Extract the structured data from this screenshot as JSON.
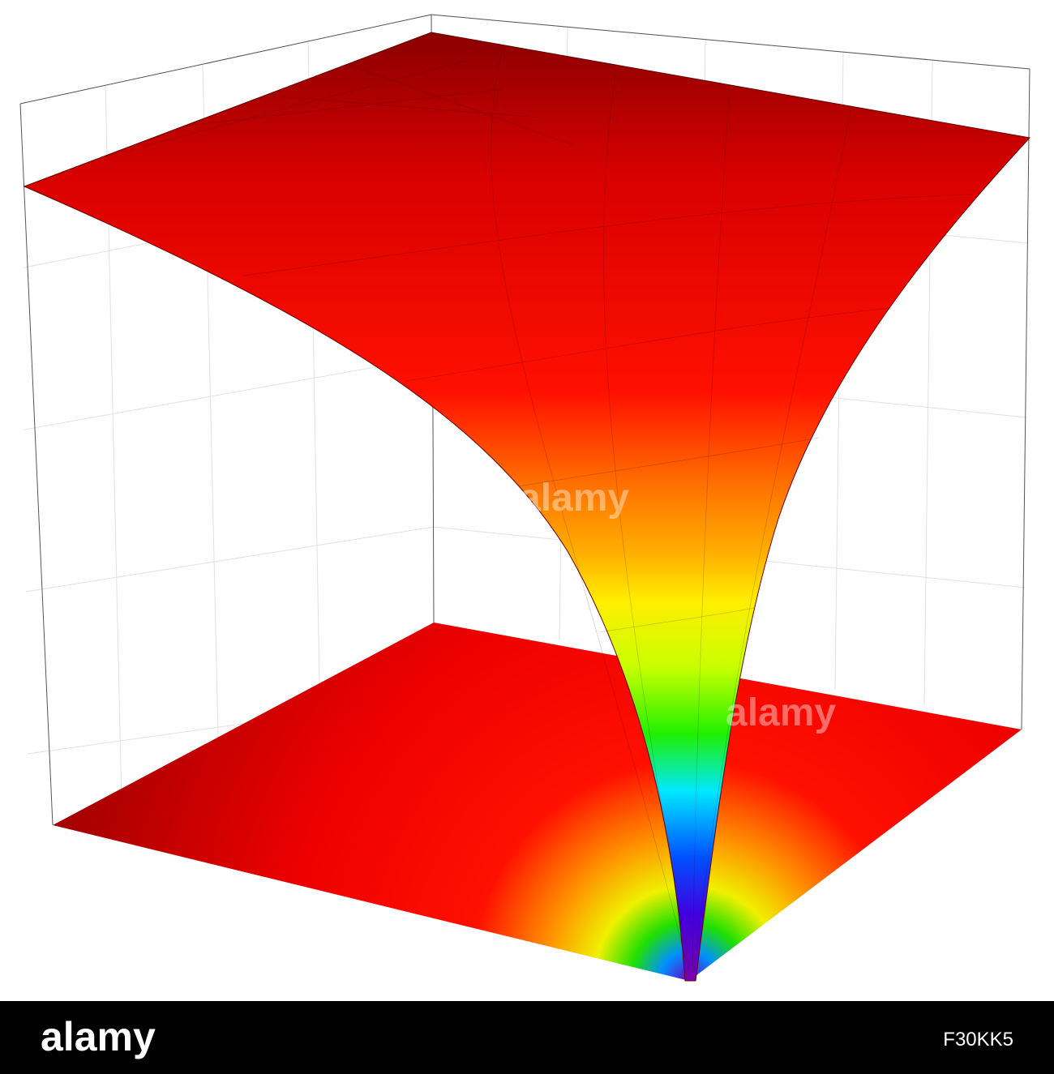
{
  "footer": {
    "logo": "alamy",
    "image_id": "F30KK5"
  }
}
